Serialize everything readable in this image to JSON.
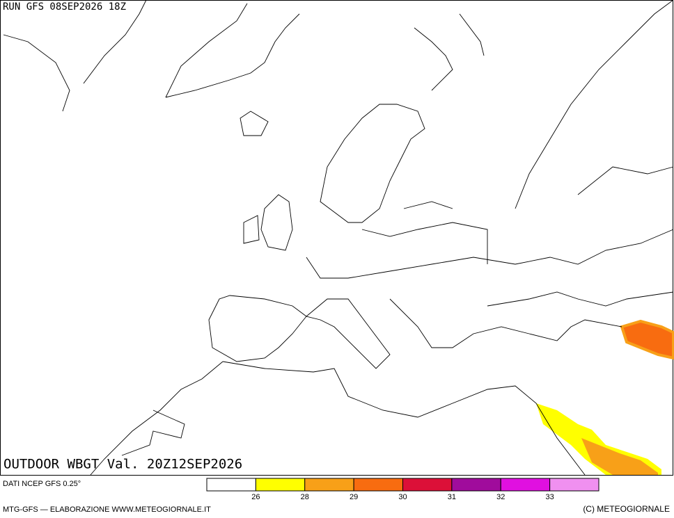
{
  "header": {
    "run": "RUN GFS 08SEP2026 18Z"
  },
  "title": "OUTDOOR WBGT Val. 20Z12SEP2026",
  "source": "DATI NCEP GFS 0.25°",
  "legend": {
    "colors": [
      "#ffffff",
      "#ffff00",
      "#f8a018",
      "#f86c10",
      "#dc1038",
      "#a00c9c",
      "#e010e0",
      "#f090f0"
    ],
    "boundaries": [
      26,
      28,
      29,
      30,
      31,
      32,
      33
    ]
  },
  "footer": {
    "left": "MTG-GFS — ELABORAZIONE WWW.METEOGIORNALE.IT",
    "right": "(C) METEOGIORNALE"
  }
}
